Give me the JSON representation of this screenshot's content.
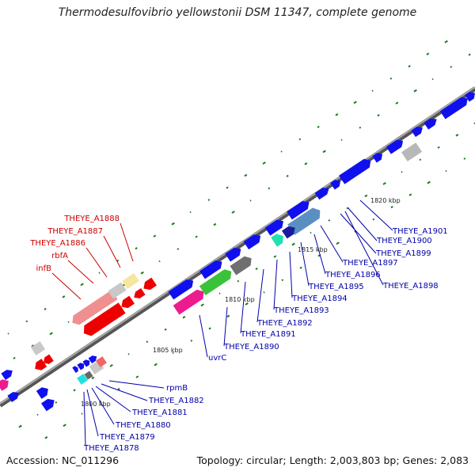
{
  "title": "Thermodesulfovibrio yellowstonii DSM 11347, complete genome",
  "accession": "Accession: NC_011296",
  "topology": "Topology: circular; Length: 2,003,803 bp; Genes: 2,083",
  "colors": {
    "forward_strand": "#0000ee",
    "reverse_strand": "#ee0000",
    "forward_label": "#0000aa",
    "reverse_label": "#cc0000",
    "backbone": "#808080",
    "gc_dots": "#1a7a1a"
  },
  "ticks": [
    "1800 kbp",
    "1805 kbp",
    "1810 kbp",
    "1815 kbp",
    "1820 kbp"
  ],
  "reverse_labels": [
    "THEYE_A1888",
    "THEYE_A1887",
    "THEYE_A1886",
    "rbfA",
    "infB"
  ],
  "forward_labels": [
    "rpmB",
    "THEYE_A1882",
    "THEYE_A1881",
    "THEYE_A1880",
    "THEYE_A1879",
    "THEYE_A1878",
    "uvrC",
    "THEYE_A1890",
    "THEYE_A1891",
    "THEYE_A1892",
    "THEYE_A1893",
    "THEYE_A1894",
    "THEYE_A1895",
    "THEYE_A1896",
    "THEYE_A1897",
    "THEYE_A1898",
    "THEYE_A1899",
    "THEYE_A1900",
    "THEYE_A1901"
  ]
}
